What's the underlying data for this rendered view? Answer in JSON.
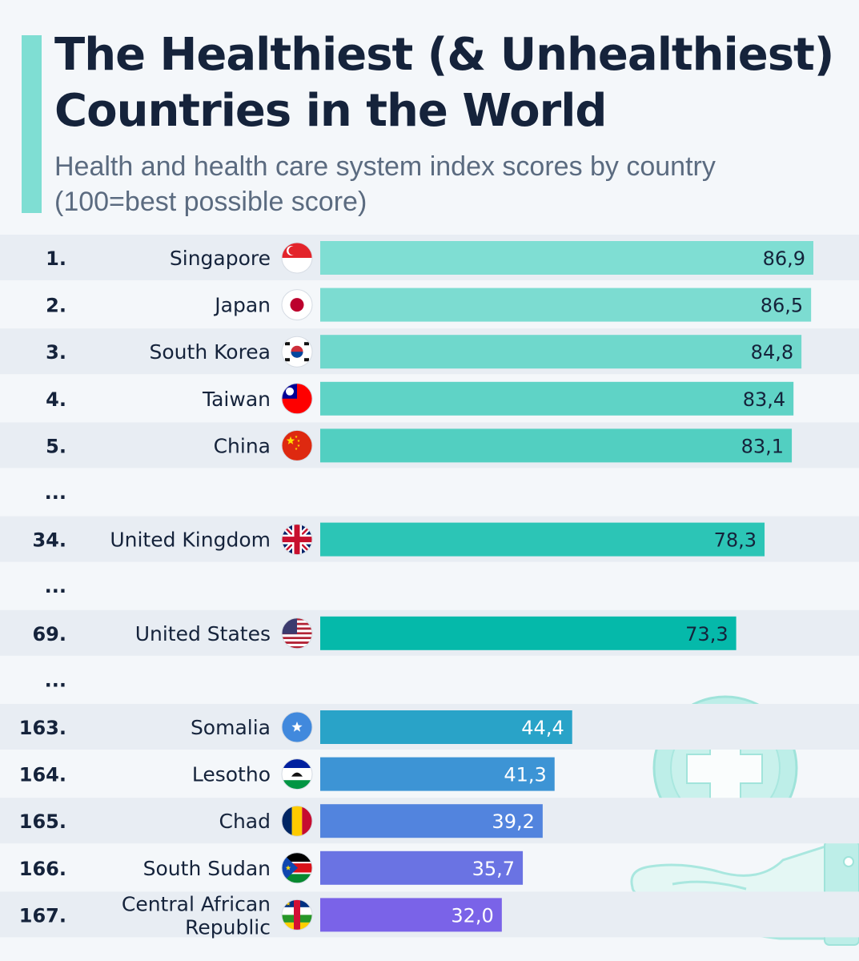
{
  "header": {
    "title_line1": "The Healthiest (& Unhealthiest)",
    "title_line2": "Countries in the World",
    "subtitle_line1": "Health and health care system index scores by country",
    "subtitle_line2": "(100=best possible score)"
  },
  "chart_data": {
    "type": "bar",
    "orientation": "horizontal",
    "title": "The Healthiest (& Unhealthiest) Countries in the World",
    "subtitle": "Health and health care system index scores by country (100=best possible score)",
    "xlim": [
      0,
      100
    ],
    "grid": false,
    "rows": [
      {
        "kind": "bar",
        "rank": "1.",
        "country": "Singapore",
        "value": 86.9,
        "label": "86,9",
        "flag": "singapore-flag",
        "color": "#7fded3"
      },
      {
        "kind": "bar",
        "rank": "2.",
        "country": "Japan",
        "value": 86.5,
        "label": "86,5",
        "flag": "japan-flag",
        "color": "#7cdcd1"
      },
      {
        "kind": "bar",
        "rank": "3.",
        "country": "South Korea",
        "value": 84.8,
        "label": "84,8",
        "flag": "south-korea-flag",
        "color": "#6fd8cc"
      },
      {
        "kind": "bar",
        "rank": "4.",
        "country": "Taiwan",
        "value": 83.4,
        "label": "83,4",
        "flag": "taiwan-flag",
        "color": "#5fd3c6"
      },
      {
        "kind": "bar",
        "rank": "5.",
        "country": "China",
        "value": 83.1,
        "label": "83,1",
        "flag": "china-flag",
        "color": "#52cfc1"
      },
      {
        "kind": "gap",
        "rank": "..."
      },
      {
        "kind": "bar",
        "rank": "34.",
        "country": "United Kingdom",
        "value": 78.3,
        "label": "78,3",
        "flag": "united-kingdom-flag",
        "color": "#2cc5b6"
      },
      {
        "kind": "gap",
        "rank": "..."
      },
      {
        "kind": "bar",
        "rank": "69.",
        "country": "United States",
        "value": 73.3,
        "label": "73,3",
        "flag": "united-states-flag",
        "color": "#05b9aa"
      },
      {
        "kind": "gap",
        "rank": "..."
      },
      {
        "kind": "bar",
        "rank": "163.",
        "country": "Somalia",
        "value": 44.4,
        "label": "44,4",
        "flag": "somalia-flag",
        "color": "#29a3c8"
      },
      {
        "kind": "bar",
        "rank": "164.",
        "country": "Lesotho",
        "value": 41.3,
        "label": "41,3",
        "flag": "lesotho-flag",
        "color": "#3d94d5"
      },
      {
        "kind": "bar",
        "rank": "165.",
        "country": "Chad",
        "value": 39.2,
        "label": "39,2",
        "flag": "chad-flag",
        "color": "#5284de"
      },
      {
        "kind": "bar",
        "rank": "166.",
        "country": "South Sudan",
        "value": 35.7,
        "label": "35,7",
        "flag": "south-sudan-flag",
        "color": "#6a73e3"
      },
      {
        "kind": "bar",
        "rank": "167.",
        "country": "Central African Republic",
        "country_lines": [
          "Central African",
          "Republic"
        ],
        "value": 32.0,
        "label": "32,0",
        "flag": "central-african-republic-flag",
        "color": "#7a63e8"
      }
    ]
  },
  "colors": {
    "title": "#15233b",
    "subtitle": "#5b6b80",
    "accent": "#7fded3",
    "stripe": "#e8edf3",
    "background": "#f4f7fa",
    "dark_label": "#15233b",
    "light_label": "#ffffff"
  },
  "decoration": {
    "icon": "medical-cross-hand-icon"
  }
}
